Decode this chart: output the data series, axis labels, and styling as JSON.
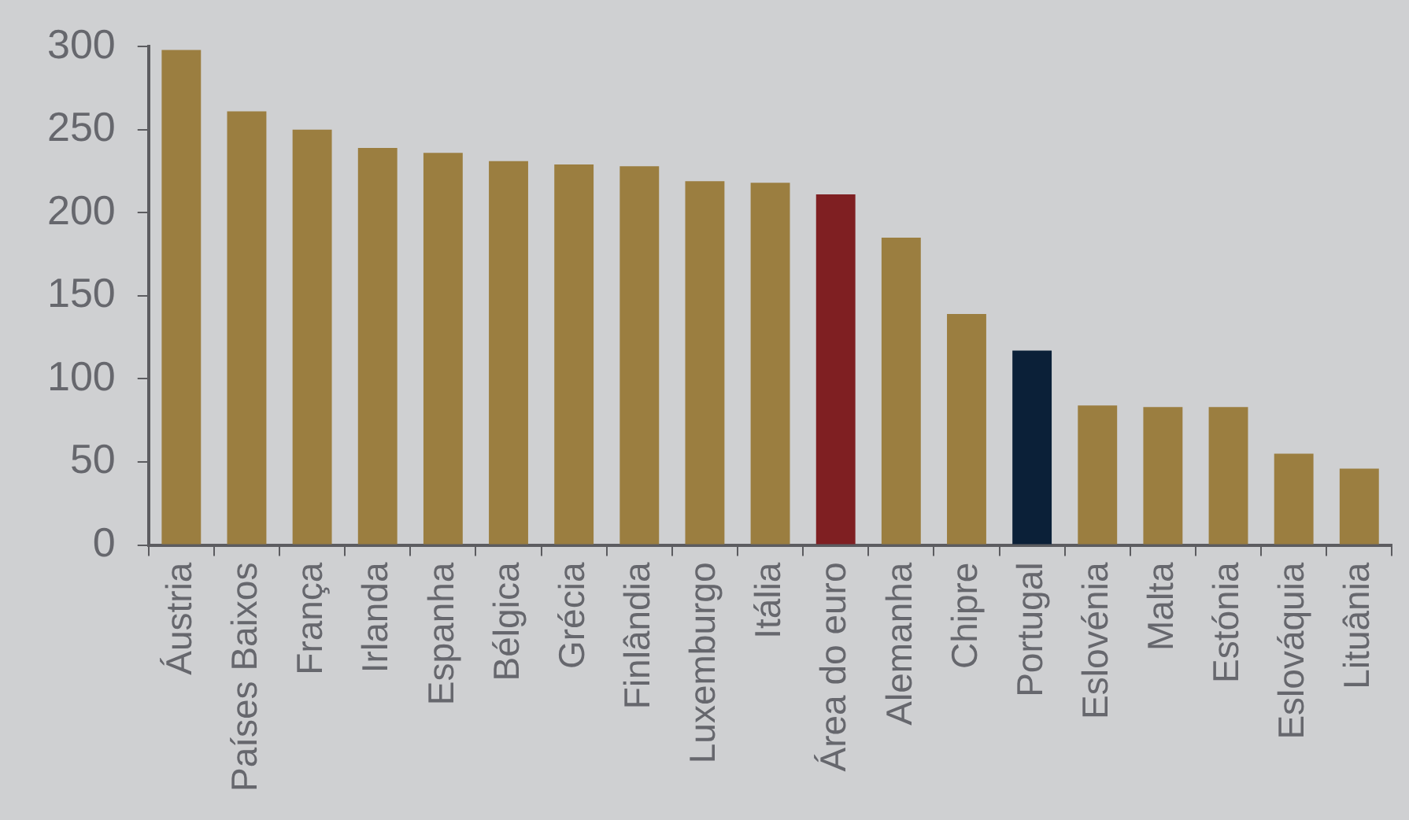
{
  "chart_data": {
    "type": "bar",
    "categories": [
      "Áustria",
      "Países Baixos",
      "França",
      "Irlanda",
      "Espanha",
      "Bélgica",
      "Grécia",
      "Finlândia",
      "Luxemburgo",
      "Itália",
      "Área do euro",
      "Alemanha",
      "Chipre",
      "Portugal",
      "Eslovénia",
      "Malta",
      "Estónia",
      "Eslováquia",
      "Lituânia"
    ],
    "values": [
      298,
      261,
      250,
      239,
      236,
      231,
      229,
      228,
      219,
      218,
      211,
      185,
      139,
      117,
      84,
      83,
      83,
      55,
      46
    ],
    "colors": [
      "#9b7e40",
      "#9b7e40",
      "#9b7e40",
      "#9b7e40",
      "#9b7e40",
      "#9b7e40",
      "#9b7e40",
      "#9b7e40",
      "#9b7e40",
      "#9b7e40",
      "#7f1f22",
      "#9b7e40",
      "#9b7e40",
      "#0b2038",
      "#9b7e40",
      "#9b7e40",
      "#9b7e40",
      "#9b7e40",
      "#9b7e40"
    ],
    "ylim": [
      0,
      300
    ],
    "yticks": [
      0,
      50,
      100,
      150,
      200,
      250,
      300
    ],
    "grid": false,
    "legend": false
  }
}
